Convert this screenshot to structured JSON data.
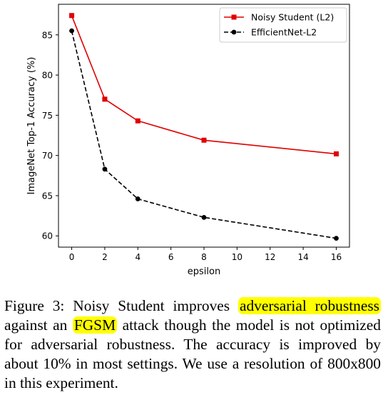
{
  "chart_data": {
    "type": "line",
    "x": [
      0,
      2,
      4,
      8,
      16
    ],
    "x_ticks": [
      0,
      2,
      4,
      6,
      8,
      10,
      12,
      14,
      16
    ],
    "y_ticks": [
      60,
      65,
      70,
      75,
      80,
      85
    ],
    "xlim": [
      -0.8,
      16.8
    ],
    "ylim": [
      58.6,
      88.8
    ],
    "xlabel": "epsilon",
    "ylabel": "ImageNet Top-1 Accuracy (%)",
    "legend_position": "top-right",
    "grid": false,
    "series": [
      {
        "name": "Noisy Student (L2)",
        "values": [
          87.4,
          77.0,
          74.3,
          71.9,
          70.2
        ],
        "color": "#e00000",
        "line_style": "solid",
        "marker": "square"
      },
      {
        "name": "EfficientNet-L2",
        "values": [
          85.5,
          68.3,
          64.6,
          62.3,
          59.7
        ],
        "color": "#000000",
        "line_style": "dashed",
        "marker": "circle"
      }
    ]
  },
  "caption": {
    "part1": "Figure 3:  Noisy Student improves ",
    "highlight1": "adversarial robustness",
    "part2": " against an ",
    "highlight2": "FGSM",
    "part3": " attack though the model is not optimized for adversarial robustness.  The accuracy is improved by about 10% in most settings. We use a resolution of 800x800 in this experiment.",
    "highlight_color": "#ffff00"
  }
}
